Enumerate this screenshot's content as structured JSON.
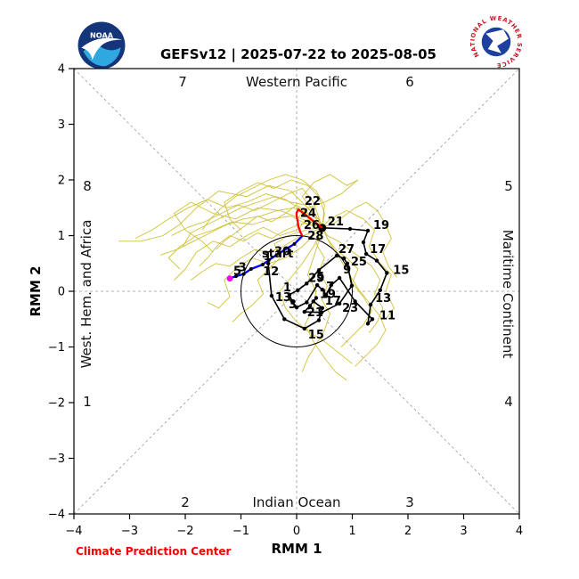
{
  "header": {
    "title": "GEFSv12 | 2025-07-22 to 2025-08-05",
    "noaa_logo_text": "NOAA",
    "nws_ring_text": "NATIONAL WEATHER SERVICE"
  },
  "footer": {
    "credit": "Climate Prediction Center"
  },
  "chart_data": {
    "type": "line",
    "title": "GEFSv12 | 2025-07-22 to 2025-08-05",
    "xlabel": "RMM 1",
    "ylabel": "RMM 2",
    "xlim": [
      -4,
      4
    ],
    "ylim": [
      -4,
      4
    ],
    "xticks": [
      -4,
      -3,
      -2,
      -1,
      0,
      1,
      2,
      3,
      4
    ],
    "yticks": [
      -4,
      -3,
      -2,
      -1,
      0,
      1,
      2,
      3,
      4
    ],
    "grid": false,
    "unit_circle_radius": 1,
    "phase_labels": {
      "p1": "1",
      "p2": "2",
      "p3": "3",
      "p4": "4",
      "p5": "5",
      "p6": "6",
      "p7": "7",
      "p8": "8"
    },
    "region_labels": {
      "top": "Western Pacific",
      "bottom": "Indian Ocean",
      "left": "West. Hem. and Africa",
      "right": "Maritime Continent"
    },
    "start_label": "start",
    "colors": {
      "observed": "#000000",
      "forecast_week1": "#ff0000",
      "forecast_week2": "#0000ff",
      "forecast_end_marker": "#ee00ee",
      "ensemble": "#cfc33a",
      "guides": "#999999",
      "credit": "#ff0000"
    },
    "observed_track": {
      "color": "#000000",
      "points": [
        [
          -0.51,
          0.5,
          "12",
          -6,
          13
        ],
        [
          -0.45,
          -0.08,
          "13",
          4,
          6
        ],
        [
          -0.22,
          -0.5
        ],
        [
          0.14,
          -0.67,
          "15",
          4,
          11
        ],
        [
          0.4,
          -0.52
        ],
        [
          0.46,
          -0.3,
          "17",
          3,
          -4
        ],
        [
          0.3,
          -0.18
        ],
        [
          0.35,
          -0.12,
          "19",
          4,
          0
        ],
        [
          0.24,
          -0.26
        ],
        [
          0.14,
          -0.37,
          "21",
          3,
          5
        ],
        [
          0.45,
          -0.38
        ],
        [
          0.77,
          -0.22,
          "23",
          3,
          9
        ],
        [
          0.99,
          0.1
        ],
        [
          0.91,
          0.5,
          "25",
          4,
          2
        ],
        [
          0.85,
          0.59
        ],
        [
          0.72,
          0.64,
          "27",
          2,
          -3
        ],
        [
          0.4,
          0.38
        ],
        [
          0.18,
          0.14,
          "29",
          2,
          -2
        ],
        [
          0.02,
          0.02
        ],
        [
          -0.13,
          -0.06,
          "1",
          -7,
          -4
        ],
        [
          -0.08,
          -0.18
        ],
        [
          0.0,
          -0.29,
          "3",
          -9,
          1
        ],
        [
          0.18,
          -0.2
        ],
        [
          0.37,
          0.11,
          "5",
          -1,
          -5
        ],
        [
          0.46,
          0.03
        ],
        [
          0.53,
          -0.06,
          "7",
          0,
          -5
        ],
        [
          0.62,
          0.11
        ],
        [
          0.77,
          0.24,
          "9",
          4,
          -5
        ],
        [
          1.05,
          -0.18
        ],
        [
          1.36,
          -0.5,
          "11",
          8,
          0
        ],
        [
          1.28,
          -0.58
        ],
        [
          1.33,
          -0.24,
          "13",
          5,
          -3
        ],
        [
          1.5,
          0.02
        ],
        [
          1.62,
          0.33,
          "15",
          7,
          1
        ],
        [
          1.44,
          0.55
        ],
        [
          1.25,
          0.67,
          "17",
          4,
          -1
        ],
        [
          1.2,
          0.88
        ],
        [
          1.28,
          1.09,
          "19",
          6,
          -2
        ],
        [
          0.96,
          1.12
        ],
        [
          0.46,
          1.14,
          "21",
          6,
          -3
        ]
      ]
    },
    "forecast_week1": {
      "color": "#ff0000",
      "points": [
        [
          0.03,
          1.47,
          "22",
          7,
          -5
        ],
        [
          0.0,
          1.41
        ],
        [
          0.0,
          1.35,
          "24",
          4,
          1
        ],
        [
          0.02,
          1.25
        ],
        [
          0.03,
          1.17,
          "26",
          6,
          3
        ],
        [
          0.06,
          1.08
        ],
        [
          0.1,
          0.99,
          "28",
          6,
          4
        ]
      ]
    },
    "forecast_week2": {
      "color": "#0000ff",
      "marker_color": "#000000",
      "end_marker_color": "#ee00ee",
      "points": [
        [
          -0.04,
          0.85
        ],
        [
          -0.32,
          0.68,
          "30",
          -5,
          2
        ],
        [
          -0.5,
          0.56
        ],
        [
          -0.61,
          0.48,
          "1",
          1,
          -5
        ],
        [
          -0.82,
          0.4
        ],
        [
          -0.95,
          0.31,
          "3",
          -6,
          -3
        ],
        [
          -1.09,
          0.27
        ],
        [
          -1.2,
          0.23,
          "5",
          4,
          -4
        ]
      ]
    },
    "ensemble_members": {
      "color": "#cfc33a",
      "paths": [
        [
          0.46,
          1.15,
          0.2,
          1.5,
          -0.1,
          1.8,
          -0.5,
          1.9,
          -0.9,
          1.7,
          -1.4,
          1.8,
          -1.8,
          1.5,
          -2.1,
          1.2,
          -2.4,
          1.0,
          -2.8,
          0.9,
          -3.2,
          0.9
        ],
        [
          0.46,
          1.15,
          0.3,
          1.45,
          0.1,
          1.7,
          0.3,
          1.95,
          0.6,
          2.1,
          0.9,
          1.9,
          1.1,
          2.0,
          0.8,
          1.75,
          0.5,
          1.6,
          0.2,
          1.5,
          0.0,
          1.3
        ],
        [
          0.46,
          1.15,
          0.1,
          1.3,
          -0.3,
          1.45,
          -0.7,
          1.5,
          -1.1,
          1.3,
          -1.5,
          1.4,
          -1.9,
          1.6,
          -2.2,
          1.4,
          -2.0,
          1.1,
          -1.7,
          0.9,
          -1.5,
          0.7
        ],
        [
          0.46,
          1.15,
          0.2,
          1.3,
          0.0,
          1.1,
          -0.3,
          1.0,
          -0.6,
          1.15,
          -0.9,
          1.0,
          -1.2,
          0.8,
          -1.5,
          0.9,
          -1.8,
          0.7,
          -2.0,
          0.4,
          -2.2,
          0.2
        ],
        [
          0.46,
          1.15,
          0.3,
          1.0,
          0.1,
          0.8,
          -0.2,
          0.6,
          -0.5,
          0.5,
          -0.8,
          0.6,
          -1.1,
          0.4,
          -1.3,
          0.2,
          -1.2,
          -0.1,
          -1.4,
          -0.3,
          -1.6,
          -0.2
        ],
        [
          0.46,
          1.15,
          0.5,
          1.4,
          0.4,
          1.7,
          0.2,
          1.9,
          -0.1,
          2.0,
          -0.4,
          1.85,
          -0.7,
          1.95,
          -1.0,
          1.8,
          -1.3,
          1.6,
          -1.2,
          1.3,
          -1.0,
          1.1
        ],
        [
          0.46,
          1.15,
          0.6,
          1.3,
          0.9,
          1.45,
          1.2,
          1.3,
          1.4,
          1.1,
          1.3,
          0.8,
          1.5,
          0.5,
          1.7,
          0.3,
          1.6,
          0.0,
          1.75,
          -0.3,
          1.6,
          -0.5
        ],
        [
          0.46,
          1.15,
          0.4,
          0.9,
          0.3,
          0.6,
          0.2,
          0.3,
          0.35,
          0.0,
          0.3,
          -0.3,
          0.15,
          -0.6,
          0.3,
          -0.9,
          0.5,
          -1.2,
          0.7,
          -1.45,
          0.9,
          -1.6
        ],
        [
          0.46,
          1.15,
          0.2,
          1.2,
          -0.1,
          1.35,
          -0.45,
          1.3,
          -0.8,
          1.2,
          -1.15,
          1.25,
          -1.5,
          1.1,
          -1.8,
          1.0,
          -2.1,
          0.8,
          -2.3,
          0.6,
          -2.1,
          0.4
        ],
        [
          0.46,
          1.15,
          0.35,
          1.35,
          0.15,
          1.55,
          -0.1,
          1.6,
          -0.4,
          1.7,
          -0.7,
          1.6,
          -1.0,
          1.5,
          -1.3,
          1.35,
          -1.6,
          1.2,
          -1.9,
          1.05,
          -2.05,
          0.8
        ],
        [
          0.46,
          1.15,
          0.55,
          0.95,
          0.7,
          0.75,
          0.9,
          0.6,
          1.1,
          0.4,
          1.0,
          0.15,
          1.2,
          -0.1,
          1.35,
          -0.35,
          1.2,
          -0.6,
          1.0,
          -0.8,
          0.8,
          -1.0
        ],
        [
          0.46,
          1.15,
          0.25,
          1.05,
          0.0,
          0.95,
          -0.25,
          0.8,
          -0.5,
          0.7,
          -0.75,
          0.75,
          -1.0,
          0.6,
          -1.2,
          0.45,
          -1.45,
          0.5,
          -1.7,
          0.35,
          -1.9,
          0.2
        ],
        [
          0.46,
          1.15,
          0.3,
          1.25,
          0.05,
          1.2,
          -0.2,
          1.1,
          -0.45,
          0.95,
          -0.7,
          1.05,
          -0.95,
          0.9,
          -1.2,
          1.0,
          -1.4,
          0.85,
          -1.6,
          0.6,
          -1.75,
          0.45
        ],
        [
          0.46,
          1.15,
          0.5,
          1.55,
          0.35,
          1.8,
          0.1,
          2.0,
          -0.2,
          2.1,
          -0.5,
          2.0,
          -0.8,
          1.85,
          -1.1,
          1.7,
          -1.35,
          1.5,
          -1.55,
          1.3,
          -1.7,
          1.1
        ],
        [
          0.46,
          1.15,
          0.15,
          1.1,
          -0.15,
          1.0,
          -0.4,
          0.85,
          -0.3,
          0.6,
          -0.5,
          0.4,
          -0.7,
          0.2,
          -0.6,
          -0.05,
          -0.8,
          -0.25,
          -1.0,
          -0.4,
          -1.15,
          -0.55
        ],
        [
          0.46,
          1.15,
          0.65,
          1.2,
          0.85,
          1.35,
          1.05,
          1.5,
          1.25,
          1.6,
          1.45,
          1.45,
          1.6,
          1.2,
          1.7,
          0.95,
          1.55,
          0.7,
          1.65,
          0.45,
          1.8,
          0.25
        ],
        [
          0.46,
          1.15,
          0.3,
          1.6,
          0.1,
          1.85,
          -0.15,
          1.75,
          -0.45,
          1.6,
          -0.75,
          1.45,
          -1.05,
          1.55,
          -1.35,
          1.4,
          -1.65,
          1.25,
          -1.95,
          1.15,
          -2.25,
          1.0
        ],
        [
          0.46,
          1.15,
          0.4,
          1.3,
          0.2,
          1.4,
          0.0,
          1.55,
          -0.2,
          1.4,
          -0.45,
          1.25,
          -0.7,
          1.35,
          -0.9,
          1.2,
          -1.1,
          1.05,
          -1.3,
          0.9,
          -1.45,
          0.75
        ],
        [
          0.46,
          1.15,
          0.35,
          0.85,
          0.5,
          0.6,
          0.4,
          0.35,
          0.55,
          0.1,
          0.45,
          -0.15,
          0.6,
          -0.4,
          0.5,
          -0.7,
          0.35,
          -0.95,
          0.2,
          -1.2,
          0.1,
          -1.45
        ],
        [
          0.46,
          1.15,
          0.2,
          1.35,
          -0.05,
          1.5,
          -0.35,
          1.45,
          -0.65,
          1.35,
          -0.95,
          1.3,
          -1.25,
          1.2,
          -1.55,
          1.05,
          -1.85,
          0.9,
          -2.15,
          0.75,
          -2.45,
          0.65
        ],
        [
          0.46,
          1.15,
          0.55,
          1.0,
          0.75,
          0.9,
          0.95,
          0.75,
          1.15,
          0.6,
          1.35,
          0.45,
          1.5,
          0.2,
          1.4,
          -0.05,
          1.55,
          -0.3,
          1.45,
          -0.55,
          1.3,
          -0.75
        ],
        [
          0.46,
          1.15,
          0.1,
          1.45,
          -0.2,
          1.65,
          -0.55,
          1.75,
          -0.9,
          1.6,
          -1.25,
          1.5,
          -1.6,
          1.65,
          -1.95,
          1.5,
          -2.3,
          1.3,
          -2.6,
          1.1,
          -2.9,
          0.95
        ],
        [
          0.46,
          1.15,
          0.3,
          0.8,
          0.1,
          0.5,
          -0.1,
          0.25,
          -0.3,
          0.0,
          -0.2,
          -0.3,
          0.0,
          -0.55,
          0.25,
          -0.75,
          0.5,
          -0.9,
          0.75,
          -1.1,
          1.0,
          -1.3
        ],
        [
          0.46,
          1.15,
          0.6,
          0.85,
          0.8,
          0.55,
          0.95,
          0.3,
          1.1,
          0.05,
          1.3,
          -0.2,
          1.5,
          -0.45,
          1.6,
          -0.7,
          1.45,
          -0.95,
          1.25,
          -1.15,
          1.05,
          -1.35
        ]
      ]
    }
  }
}
